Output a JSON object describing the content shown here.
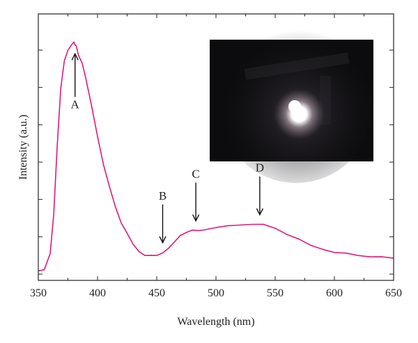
{
  "chart_data": {
    "type": "line",
    "xlabel": "Wavelength (nm)",
    "ylabel": "Intensity (a.u.)",
    "xlim": [
      350,
      650
    ],
    "ylim": [
      0,
      1.0
    ],
    "x_ticks": [
      350,
      400,
      450,
      500,
      550,
      600,
      650
    ],
    "y_tick_labels_shown": false,
    "y_minor_tick_count": 7,
    "grid": false,
    "line_color": "#e0197b",
    "inset": {
      "type": "photo",
      "description_tag": "dark-photo-with-bright-spot",
      "background_color": "#0c0c0e",
      "spot_color": "#ffffff"
    },
    "annotations": [
      {
        "label": "A",
        "x": 381,
        "direction": "up"
      },
      {
        "label": "B",
        "x": 455,
        "direction": "down"
      },
      {
        "label": "C",
        "x": 483,
        "direction": "down"
      },
      {
        "label": "D",
        "x": 537,
        "direction": "down"
      }
    ],
    "series": [
      {
        "x": [
          350,
          355,
          360,
          363,
          366,
          369,
          372,
          375,
          378,
          380,
          381,
          382,
          384,
          387,
          390,
          395,
          400,
          405,
          410,
          415,
          420,
          425,
          430,
          435,
          440,
          445,
          450,
          455,
          460,
          465,
          470,
          475,
          480,
          485,
          490,
          500,
          510,
          520,
          530,
          540,
          550,
          560,
          570,
          580,
          590,
          600,
          610,
          620,
          630,
          640,
          650
        ],
        "y": [
          0.005,
          0.01,
          0.08,
          0.25,
          0.55,
          0.8,
          0.92,
          0.96,
          0.985,
          1.0,
          0.99,
          0.98,
          0.94,
          0.91,
          0.84,
          0.72,
          0.59,
          0.47,
          0.37,
          0.285,
          0.215,
          0.165,
          0.12,
          0.09,
          0.075,
          0.07,
          0.072,
          0.085,
          0.1,
          0.13,
          0.16,
          0.175,
          0.18,
          0.18,
          0.185,
          0.19,
          0.2,
          0.205,
          0.21,
          0.205,
          0.19,
          0.165,
          0.14,
          0.115,
          0.1,
          0.088,
          0.08,
          0.072,
          0.068,
          0.063,
          0.06
        ]
      }
    ]
  }
}
